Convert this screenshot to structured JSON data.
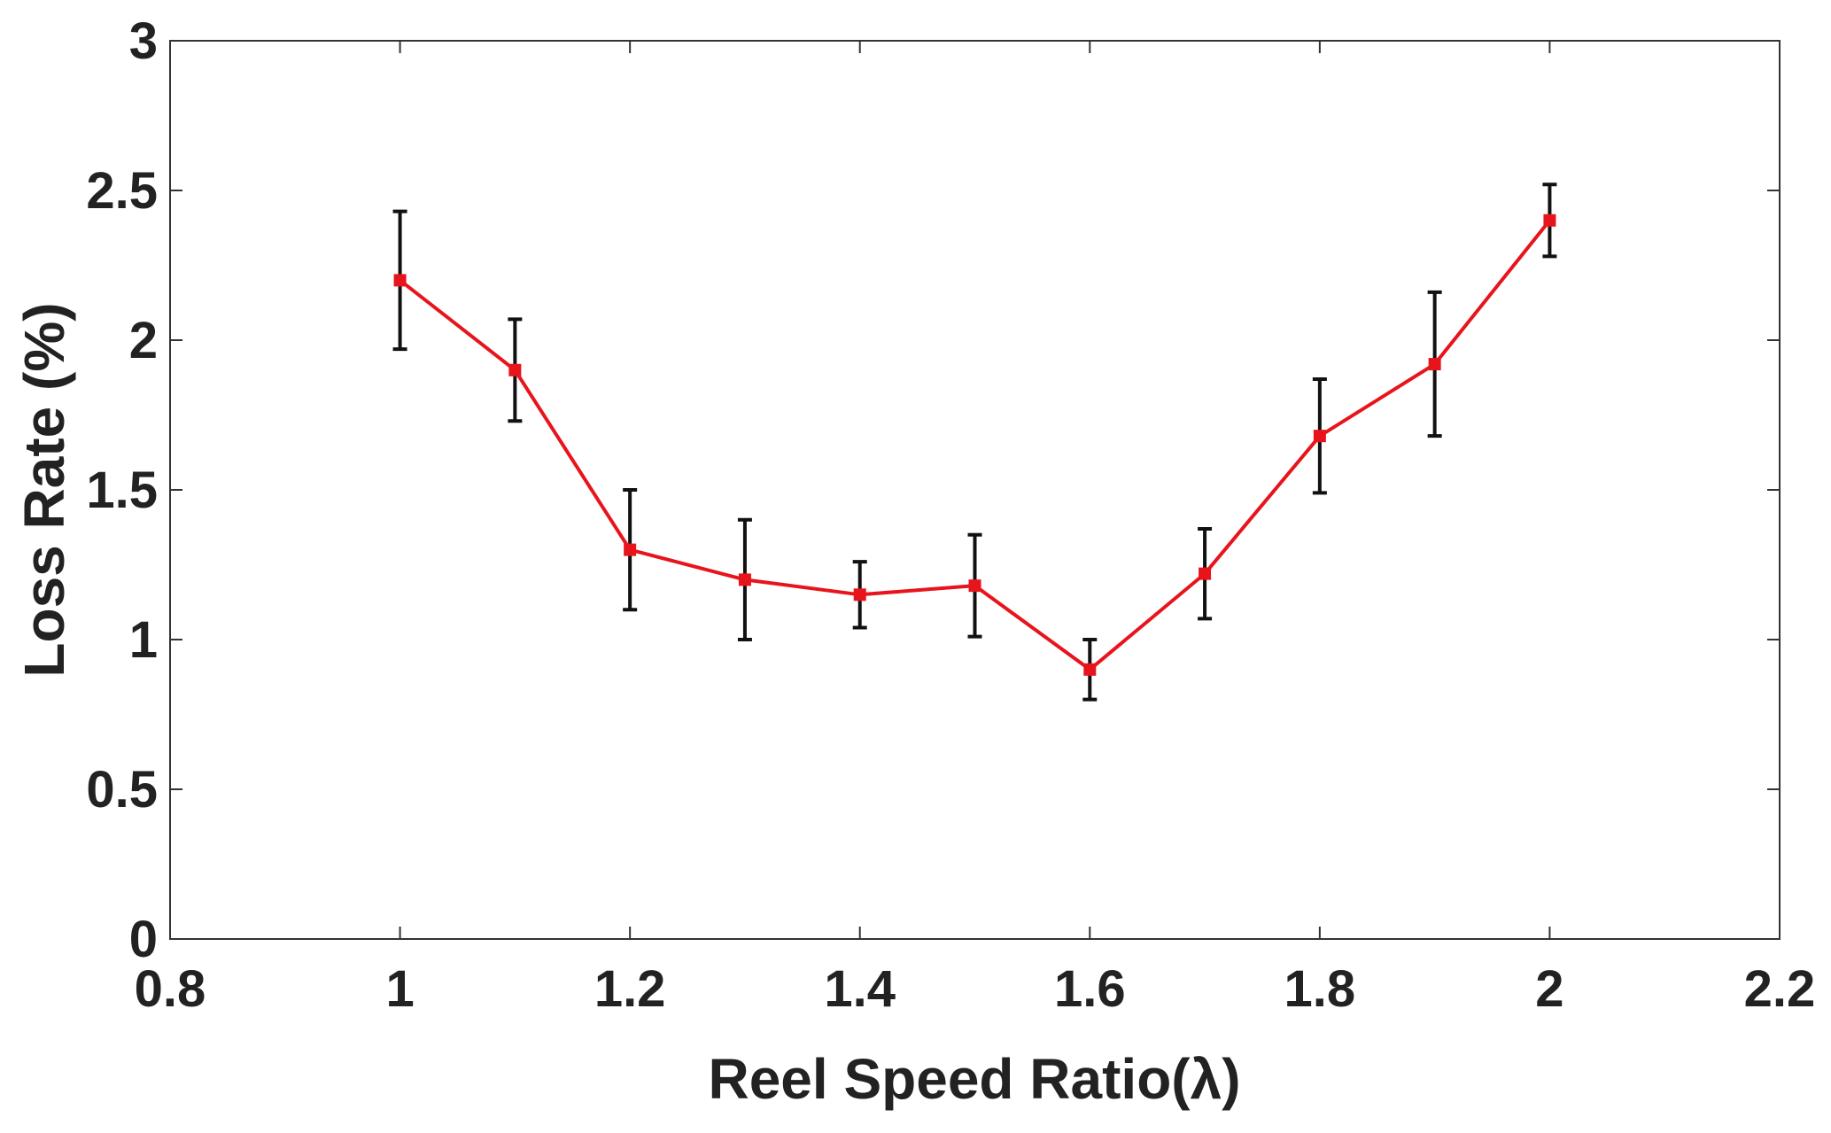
{
  "chart_data": {
    "type": "line",
    "title": "",
    "xlabel": "Reel Speed Ratio(λ)",
    "ylabel": "Loss Rate (%)",
    "xlim": [
      0.8,
      2.2
    ],
    "ylim": [
      0,
      3
    ],
    "xticks": [
      "0.8",
      "1",
      "1.2",
      "1.4",
      "1.6",
      "1.8",
      "2",
      "2.2"
    ],
    "yticks": [
      "0",
      "0.5",
      "1",
      "1.5",
      "2",
      "2.5",
      "3"
    ],
    "grid": false,
    "series": [
      {
        "name": "Loss Rate",
        "color": "#e8141c",
        "marker": "square",
        "x": [
          1.0,
          1.1,
          1.2,
          1.3,
          1.4,
          1.5,
          1.6,
          1.7,
          1.8,
          1.9,
          2.0
        ],
        "y": [
          2.2,
          1.9,
          1.3,
          1.2,
          1.15,
          1.18,
          0.9,
          1.22,
          1.68,
          1.92,
          2.4
        ],
        "err_low": [
          1.97,
          1.73,
          1.1,
          1.0,
          1.04,
          1.01,
          0.8,
          1.07,
          1.49,
          1.68,
          2.28
        ],
        "err_high": [
          2.43,
          2.07,
          1.5,
          1.4,
          1.26,
          1.35,
          1.0,
          1.37,
          1.87,
          2.16,
          2.52
        ],
        "errorbar_color": "#111111"
      }
    ]
  }
}
